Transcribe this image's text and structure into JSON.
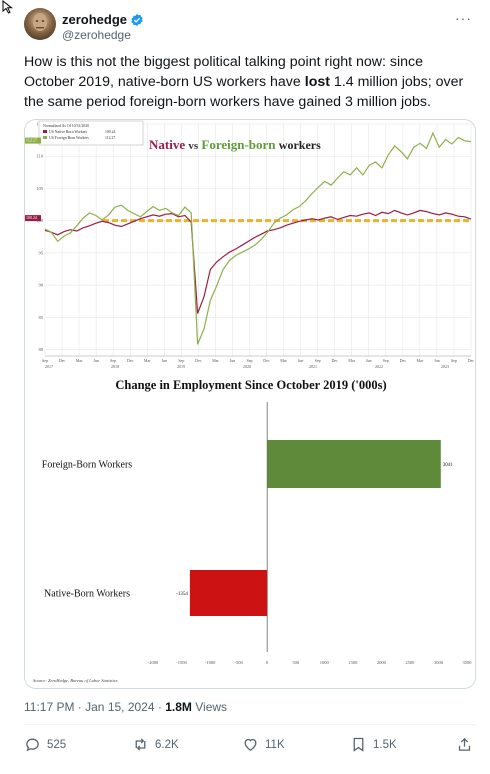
{
  "tweet": {
    "author_name": "zerohedge",
    "author_handle": "@zerohedge",
    "text_before": "How is this not the biggest political talking point right now: since October 2019, native-born US workers have ",
    "text_bold": "lost",
    "text_after": " 1.4 million jobs; over the same period foreign-born workers have gained 3 million jobs.",
    "time": "11:17 PM · Jan 15, 2024",
    "views_count": "1.8M",
    "views_label": "Views",
    "replies": "525",
    "reposts": "6.2K",
    "likes": "11K",
    "bookmarks": "1.5K"
  },
  "icons": [
    "verified-badge-icon",
    "more-icon",
    "reply-icon",
    "repost-icon",
    "like-icon",
    "bookmark-icon",
    "share-icon",
    "cursor-icon"
  ],
  "colors": {
    "native": "#9b1c42",
    "foreign": "#8db04a",
    "baseline": "#e8b42f",
    "bar_foreign": "#5e8a3a",
    "bar_native": "#cc1212",
    "verified": "#1d9bf0"
  },
  "chart_data": [
    {
      "type": "line",
      "title_native": "Native",
      "title_vs": "vs",
      "title_foreign": "Foreign-born",
      "title_suffix": "workers",
      "legend_title": "Normalized As Of 10/31/2020",
      "series": [
        {
          "name": "US Native Born Workers",
          "last_label": "100.24",
          "values": [
            98.5,
            98.2,
            97.8,
            98.3,
            98.6,
            98.4,
            98.9,
            99.2,
            99.6,
            99.9,
            99.7,
            99.3,
            99.1,
            99.5,
            99.9,
            100.3,
            100.6,
            100.9,
            100.7,
            101.0,
            101.1,
            100.6,
            100.8,
            99.8,
            85.6,
            88.2,
            92.4,
            93.6,
            94.4,
            95.1,
            95.6,
            96.2,
            96.8,
            97.4,
            97.9,
            98.4,
            98.6,
            98.9,
            99.3,
            99.6,
            99.9,
            100.1,
            100.3,
            100.1,
            100.4,
            100.6,
            100.2,
            100.5,
            100.8,
            100.7,
            101.0,
            101.2,
            100.8,
            101.3,
            101.1,
            101.6,
            101.2,
            100.9,
            101.2,
            101.6,
            101.4,
            101.1,
            100.9,
            101.2,
            101.0,
            100.7,
            100.6,
            100.24
          ]
        },
        {
          "name": "US Foreign Born Workers",
          "last_label": "112.27",
          "values": [
            98.7,
            98.2,
            96.8,
            97.6,
            98.1,
            99.2,
            100.4,
            101.2,
            100.8,
            100.1,
            100.9,
            102.1,
            102.4,
            101.6,
            101.1,
            100.6,
            101.4,
            102.2,
            101.6,
            101.9,
            101.2,
            100.8,
            102.1,
            101.2,
            80.8,
            83.2,
            87.6,
            89.9,
            92.4,
            93.8,
            94.6,
            95.1,
            95.6,
            96.2,
            97.1,
            98.2,
            99.6,
            100.4,
            100.9,
            101.7,
            102.2,
            103.1,
            104.2,
            105.2,
            106.1,
            105.5,
            106.6,
            107.6,
            107.1,
            108.2,
            107.1,
            108.6,
            109.1,
            108.2,
            110.2,
            111.6,
            110.7,
            109.6,
            111.4,
            112.0,
            111.2,
            113.6,
            111.4,
            112.6,
            111.9,
            112.9,
            112.4,
            112.27
          ]
        }
      ],
      "baseline_value": 100,
      "ylim": [
        79,
        115
      ],
      "yticks": [
        80,
        85,
        90,
        95,
        100,
        105,
        110,
        115
      ],
      "xtick_labels": [
        "Sep",
        "Dec",
        "Mar",
        "Jun",
        "Sep",
        "Dec",
        "Mar",
        "Jun",
        "Sep",
        "Dec",
        "Mar",
        "Jun",
        "Sep",
        "Dec",
        "Mar",
        "Jun",
        "Sep",
        "Dec",
        "Mar",
        "Jun",
        "Sep",
        "Dec",
        "Mar",
        "Jun",
        "Sep",
        "Dec"
      ],
      "year_labels": [
        "2017",
        "2018",
        "2019",
        "2020",
        "2021",
        "2022",
        "2023"
      ],
      "grid": true
    },
    {
      "type": "bar",
      "title": "Change in Employment Since October 2019 ('000s)",
      "categories": [
        "Foreign-Born Workers",
        "Native-Born Workers"
      ],
      "values": [
        3041,
        -1354
      ],
      "value_labels": [
        "3041",
        "-1354"
      ],
      "xlim": [
        -2000,
        3500
      ],
      "xticks": [
        "-2000",
        "-1500",
        "-1000",
        "-500",
        "0",
        "500",
        "1000",
        "1500",
        "2000",
        "2500",
        "3000",
        "3500"
      ],
      "source": "Source: ZeroHedge, Bureau of Labor Statistics",
      "grid": false
    }
  ]
}
